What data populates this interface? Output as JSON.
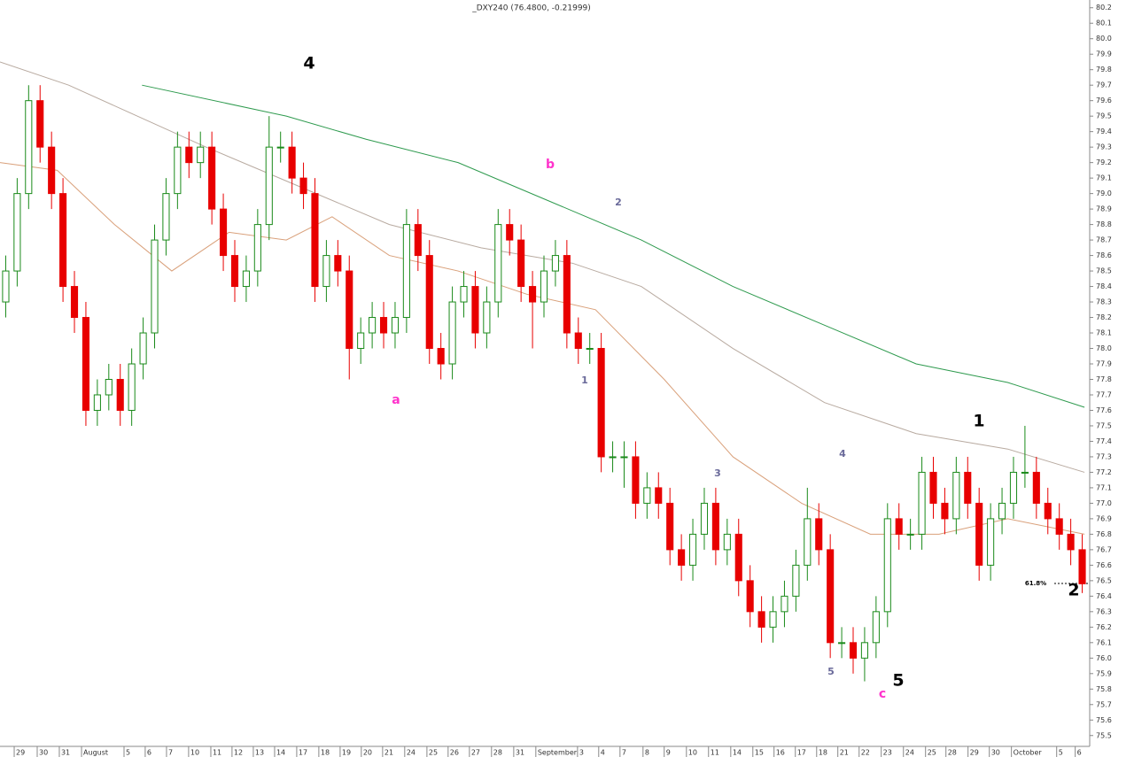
{
  "chart_data": {
    "type": "candlestick",
    "title": "_DXY240 (76.4800, -0.21999)",
    "open": [
      78.3,
      78.5,
      79.0,
      79.6,
      79.3,
      79.0,
      78.4,
      78.2,
      77.6,
      77.7,
      77.8,
      77.6,
      77.9,
      78.1,
      78.7,
      79.0,
      79.3,
      79.2,
      79.3,
      78.9,
      78.6,
      78.4,
      78.5,
      78.8,
      79.3,
      79.3,
      79.1,
      79.0,
      78.4,
      78.6,
      78.5,
      78.0,
      78.1,
      78.2,
      78.1,
      78.2,
      78.8,
      78.6,
      78.0,
      77.9,
      78.3,
      78.4,
      78.1,
      78.3,
      78.8,
      78.7,
      78.4,
      78.3,
      78.5,
      78.6,
      78.1,
      78.0,
      78.0,
      77.3,
      77.3,
      77.3,
      77.0,
      77.1,
      77.0,
      76.7,
      76.6,
      76.8,
      77.0,
      76.7,
      76.8,
      76.5,
      76.3,
      76.2,
      76.3,
      76.4,
      76.6,
      76.9,
      76.7,
      76.1,
      76.1,
      76.0,
      76.1,
      76.3,
      76.9,
      76.8,
      76.8,
      77.2,
      77.0,
      76.9,
      77.2,
      77.0,
      76.6,
      76.9,
      77.0,
      77.2,
      77.2,
      77.0,
      76.9,
      76.8,
      76.7
    ],
    "high": [
      78.6,
      79.1,
      79.7,
      79.7,
      79.4,
      79.1,
      78.5,
      78.3,
      77.8,
      77.9,
      77.9,
      78.0,
      78.2,
      78.8,
      79.1,
      79.4,
      79.4,
      79.4,
      79.4,
      79.0,
      78.7,
      78.6,
      78.9,
      79.5,
      79.4,
      79.4,
      79.2,
      79.1,
      78.7,
      78.7,
      78.6,
      78.2,
      78.3,
      78.3,
      78.3,
      78.9,
      78.9,
      78.7,
      78.1,
      78.4,
      78.5,
      78.5,
      78.4,
      78.9,
      78.9,
      78.8,
      78.5,
      78.6,
      78.7,
      78.7,
      78.2,
      78.1,
      78.1,
      77.4,
      77.4,
      77.4,
      77.2,
      77.2,
      77.1,
      76.8,
      76.9,
      77.1,
      77.1,
      76.9,
      76.9,
      76.6,
      76.4,
      76.4,
      76.5,
      76.7,
      77.1,
      77.0,
      76.8,
      76.2,
      76.2,
      76.2,
      76.4,
      77.0,
      77.0,
      76.9,
      77.3,
      77.3,
      77.1,
      77.3,
      77.3,
      77.1,
      77.0,
      77.1,
      77.3,
      77.5,
      77.3,
      77.1,
      77.0,
      76.9,
      76.8
    ],
    "low": [
      78.2,
      78.4,
      78.9,
      79.2,
      78.9,
      78.3,
      78.1,
      77.5,
      77.5,
      77.6,
      77.5,
      77.5,
      77.8,
      78.0,
      78.6,
      78.9,
      79.1,
      79.1,
      78.8,
      78.5,
      78.3,
      78.3,
      78.4,
      78.7,
      79.2,
      79.0,
      78.9,
      78.3,
      78.3,
      78.4,
      77.8,
      77.9,
      78.0,
      78.0,
      78.0,
      78.1,
      78.5,
      77.9,
      77.8,
      77.8,
      78.2,
      78.0,
      78.0,
      78.2,
      78.6,
      78.3,
      78.0,
      78.2,
      78.4,
      78.0,
      77.9,
      77.9,
      77.2,
      77.2,
      77.1,
      76.9,
      76.9,
      76.9,
      76.6,
      76.5,
      76.5,
      76.7,
      76.6,
      76.6,
      76.4,
      76.2,
      76.1,
      76.1,
      76.2,
      76.3,
      76.5,
      76.6,
      76.0,
      76.0,
      75.9,
      75.85,
      76.0,
      76.2,
      76.7,
      76.7,
      76.7,
      76.9,
      76.8,
      76.8,
      76.9,
      76.5,
      76.5,
      76.8,
      76.9,
      77.1,
      76.9,
      76.8,
      76.7,
      76.6,
      76.42
    ],
    "close": [
      78.5,
      79.0,
      79.6,
      79.3,
      79.0,
      78.4,
      78.2,
      77.6,
      77.7,
      77.8,
      77.6,
      77.9,
      78.1,
      78.7,
      79.0,
      79.3,
      79.2,
      79.3,
      78.9,
      78.6,
      78.4,
      78.5,
      78.8,
      79.3,
      79.3,
      79.1,
      79.0,
      78.4,
      78.6,
      78.5,
      78.0,
      78.1,
      78.2,
      78.1,
      78.2,
      78.8,
      78.6,
      78.0,
      77.9,
      78.3,
      78.4,
      78.1,
      78.3,
      78.8,
      78.7,
      78.4,
      78.3,
      78.5,
      78.6,
      78.1,
      78.0,
      78.0,
      77.3,
      77.3,
      77.3,
      77.0,
      77.1,
      77.0,
      76.7,
      76.6,
      76.8,
      77.0,
      76.7,
      76.8,
      76.5,
      76.3,
      76.2,
      76.3,
      76.4,
      76.6,
      76.9,
      76.7,
      76.1,
      76.1,
      76.0,
      76.1,
      76.3,
      76.9,
      76.8,
      76.8,
      77.2,
      77.0,
      76.9,
      77.2,
      77.0,
      76.6,
      76.9,
      77.0,
      77.2,
      77.2,
      77.0,
      76.9,
      76.8,
      76.7,
      76.48
    ],
    "up_color": "#1a8a1a",
    "down_color": "#e80000",
    "lines": [
      {
        "color": "#2e9a4e",
        "x": [
          12.4,
          25,
          32,
          40,
          48,
          56,
          64,
          72,
          80,
          88,
          94.7
        ],
        "values": [
          79.7,
          79.5,
          79.35,
          79.2,
          78.95,
          78.7,
          78.4,
          78.15,
          77.9,
          77.78,
          77.62
        ]
      },
      {
        "color": "#b8aaa0",
        "x": [
          0,
          6,
          12,
          18,
          26,
          34,
          42,
          50,
          56,
          64,
          72,
          80,
          88,
          94.7
        ],
        "values": [
          79.85,
          79.7,
          79.5,
          79.3,
          79.05,
          78.8,
          78.65,
          78.55,
          78.4,
          78.0,
          77.65,
          77.45,
          77.35,
          77.2
        ]
      },
      {
        "color": "#d9a07a",
        "x": [
          0,
          5,
          10,
          15,
          20,
          25,
          29,
          34,
          40,
          46,
          52,
          58,
          64,
          70,
          76,
          82,
          88,
          94.7
        ],
        "values": [
          79.2,
          79.15,
          78.8,
          78.5,
          78.75,
          78.7,
          78.85,
          78.6,
          78.5,
          78.35,
          78.25,
          77.8,
          77.3,
          77.0,
          76.8,
          76.8,
          76.9,
          76.8
        ]
      }
    ],
    "xlim": [
      0,
      95
    ],
    "ylim": [
      75.43,
      80.25
    ],
    "yticks": [
      75.5,
      75.6,
      75.7,
      75.8,
      75.9,
      {
        "value": 76,
        "label": "76.0"
      },
      76.1,
      76.2,
      76.3,
      76.4,
      76.5,
      76.6,
      76.7,
      76.8,
      76.9,
      {
        "value": 77,
        "label": "77.0"
      },
      77.1,
      77.2,
      77.3,
      77.4,
      77.5,
      77.6,
      77.7,
      77.8,
      77.9,
      {
        "value": 78,
        "label": "78.0"
      },
      78.1,
      78.2,
      78.3,
      78.4,
      78.5,
      78.6,
      78.7,
      78.8,
      78.9,
      {
        "value": 79,
        "label": "79.0"
      },
      79.1,
      79.2,
      79.3,
      79.4,
      79.5,
      79.6,
      79.7,
      79.8,
      79.9,
      {
        "value": 80,
        "label": "80.0"
      },
      80.1,
      80.2
    ],
    "xticks": [
      {
        "value": 1.24,
        "label": "29"
      },
      {
        "value": 3.25,
        "label": "30"
      },
      {
        "value": 5.18,
        "label": "31"
      },
      {
        "value": 7.12,
        "label": "August"
      },
      {
        "value": 10.83,
        "label": "5"
      },
      {
        "value": 12.68,
        "label": "6"
      },
      {
        "value": 14.54,
        "label": "7"
      },
      {
        "value": 16.47,
        "label": "10"
      },
      {
        "value": 18.41,
        "label": "11"
      },
      {
        "value": 20.26,
        "label": "12"
      },
      {
        "value": 22.12,
        "label": "13"
      },
      {
        "value": 23.98,
        "label": "14"
      },
      {
        "value": 25.91,
        "label": "17"
      },
      {
        "value": 27.84,
        "label": "18"
      },
      {
        "value": 29.7,
        "label": "19"
      },
      {
        "value": 31.55,
        "label": "20"
      },
      {
        "value": 33.41,
        "label": "21"
      },
      {
        "value": 35.34,
        "label": "24"
      },
      {
        "value": 37.28,
        "label": "25"
      },
      {
        "value": 39.13,
        "label": "26"
      },
      {
        "value": 40.99,
        "label": "27"
      },
      {
        "value": 42.92,
        "label": "28"
      },
      {
        "value": 44.86,
        "label": "31"
      },
      {
        "value": 46.79,
        "label": "September"
      },
      {
        "value": 50.43,
        "label": "3"
      },
      {
        "value": 52.28,
        "label": "4"
      },
      {
        "value": 54.14,
        "label": "7"
      },
      {
        "value": 56.15,
        "label": "8"
      },
      {
        "value": 58.0,
        "label": "9"
      },
      {
        "value": 59.94,
        "label": "10"
      },
      {
        "value": 61.87,
        "label": "11"
      },
      {
        "value": 63.81,
        "label": "14"
      },
      {
        "value": 65.74,
        "label": "15"
      },
      {
        "value": 67.59,
        "label": "16"
      },
      {
        "value": 69.45,
        "label": "17"
      },
      {
        "value": 71.31,
        "label": "18"
      },
      {
        "value": 73.16,
        "label": "21"
      },
      {
        "value": 75.02,
        "label": "22"
      },
      {
        "value": 76.95,
        "label": "23"
      },
      {
        "value": 78.89,
        "label": "24"
      },
      {
        "value": 80.82,
        "label": "25"
      },
      {
        "value": 82.6,
        "label": "28"
      },
      {
        "value": 84.53,
        "label": "29"
      },
      {
        "value": 86.39,
        "label": "30"
      },
      {
        "value": 88.32,
        "label": "October"
      },
      {
        "value": 92.27,
        "label": "5"
      },
      {
        "value": 93.89,
        "label": "6"
      }
    ],
    "annotations": [
      "4",
      "b",
      "2",
      "a",
      "1",
      "3",
      "4",
      "1",
      "5",
      "5",
      "c",
      "2",
      "61.8%"
    ]
  }
}
